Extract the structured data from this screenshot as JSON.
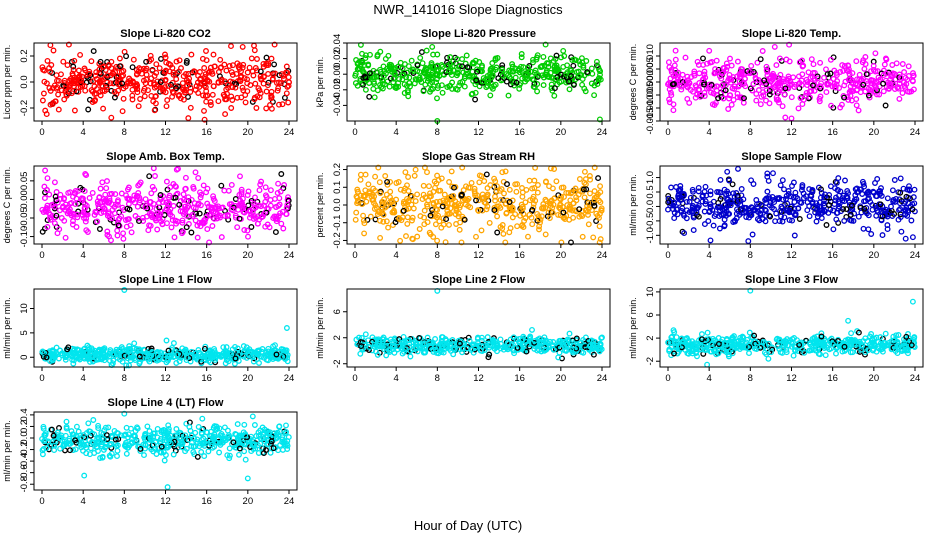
{
  "figure": {
    "title": "NWR_141016  Slope Diagnostics",
    "xlabel": "Hour of Day (UTC)"
  },
  "chart_data": [
    {
      "type": "scatter",
      "title": "Slope Li-820 CO2",
      "ylabel": "Licor ppm per min.",
      "color": "#ff0000",
      "xlim": [
        0,
        24
      ],
      "ylim": [
        -0.3,
        0.3
      ],
      "x_ticks": [
        0,
        4,
        8,
        12,
        16,
        20,
        24
      ],
      "y_ticks": [
        -0.2,
        0.0,
        0.2
      ],
      "y_tick_labels": [
        "-0.2",
        "0.0",
        "0.2"
      ],
      "center": 0.0,
      "spread": 0.1,
      "outliers": [
        {
          "x": 15.8,
          "y": -0.29
        },
        {
          "x": 20.6,
          "y": 0.28
        },
        {
          "x": 19.5,
          "y": 0.27
        }
      ]
    },
    {
      "type": "scatter",
      "title": "Slope Li-820 Pressure",
      "ylabel": "kPa per min.",
      "color": "#00cc00",
      "xlim": [
        0,
        24
      ],
      "ylim": [
        -0.06,
        0.04
      ],
      "x_ticks": [
        0,
        4,
        8,
        12,
        16,
        20,
        24
      ],
      "y_ticks": [
        -0.04,
        -0.02,
        0.0,
        0.02,
        0.04
      ],
      "y_tick_labels": [
        "-0.04",
        "-0.02",
        "0.00",
        "0.02",
        "0.04"
      ],
      "center": 0.0,
      "spread": 0.012,
      "outliers": [
        {
          "x": 8.0,
          "y": -0.06
        },
        {
          "x": 23.8,
          "y": -0.058
        },
        {
          "x": 7.5,
          "y": 0.035
        }
      ]
    },
    {
      "type": "scatter",
      "title": "Slope Li-820 Temp.",
      "ylabel": "degrees C per min.",
      "color": "#ff00ff",
      "xlim": [
        0,
        24
      ],
      "ylim": [
        -0.015,
        0.015
      ],
      "x_ticks": [
        0,
        4,
        8,
        12,
        16,
        20,
        24
      ],
      "y_ticks": [
        -0.015,
        -0.01,
        -0.005,
        0.0,
        0.005,
        0.01
      ],
      "y_tick_labels": [
        "-0.015",
        "-0.010",
        "-0.005",
        "0.000",
        "0.005",
        "0.010"
      ],
      "center": 0.0,
      "spread": 0.0045,
      "outliers": [
        {
          "x": 12.0,
          "y": -0.014
        },
        {
          "x": 4.0,
          "y": 0.012
        }
      ]
    },
    {
      "type": "scatter",
      "title": "Slope Amb. Box Temp.",
      "ylabel": "degrees C per min.",
      "color": "#ff00ff",
      "xlim": [
        0,
        24
      ],
      "ylim": [
        -0.12,
        0.09
      ],
      "x_ticks": [
        0,
        4,
        8,
        12,
        16,
        20,
        24
      ],
      "y_ticks": [
        -0.1,
        -0.05,
        0.0,
        0.05
      ],
      "y_tick_labels": [
        "-0.10",
        "-0.05",
        "0.00",
        "0.05"
      ],
      "center": -0.02,
      "spread": 0.035,
      "outliers": [
        {
          "x": 13.1,
          "y": 0.08
        },
        {
          "x": 6.7,
          "y": -0.11
        }
      ]
    },
    {
      "type": "scatter",
      "title": "Slope Gas Stream RH",
      "ylabel": "percent per min.",
      "color": "#ffa500",
      "xlim": [
        0,
        24
      ],
      "ylim": [
        -0.22,
        0.22
      ],
      "x_ticks": [
        0,
        4,
        8,
        12,
        16,
        20,
        24
      ],
      "y_ticks": [
        -0.2,
        -0.1,
        0.0,
        0.1,
        0.2
      ],
      "y_tick_labels": [
        "-0.2",
        "-0.1",
        "0.0",
        "0.1",
        "0.2"
      ],
      "center": 0.0,
      "spread": 0.09,
      "outliers": [
        {
          "x": 17.5,
          "y": 0.21
        },
        {
          "x": 8.8,
          "y": -0.21
        }
      ]
    },
    {
      "type": "scatter",
      "title": "Slope Sample Flow",
      "ylabel": "ml/min per min.",
      "color": "#0000cc",
      "xlim": [
        0,
        24
      ],
      "ylim": [
        -1.3,
        1.4
      ],
      "x_ticks": [
        0,
        4,
        8,
        12,
        16,
        20,
        24
      ],
      "y_ticks": [
        -1.0,
        -0.5,
        0.0,
        0.5,
        1.0
      ],
      "y_tick_labels": [
        "-1.0",
        "-0.5",
        "0.0",
        "0.5",
        "1.0"
      ],
      "center": 0.05,
      "spread": 0.4,
      "outliers": [
        {
          "x": 6.8,
          "y": 1.3
        },
        {
          "x": 7.8,
          "y": -1.2
        },
        {
          "x": 10.2,
          "y": 1.15
        }
      ]
    },
    {
      "type": "scatter",
      "title": "Slope Line 1 Flow",
      "ylabel": "ml/min per min.",
      "color": "#00e5ee",
      "xlim": [
        0,
        24
      ],
      "ylim": [
        -2,
        14
      ],
      "x_ticks": [
        0,
        4,
        8,
        12,
        16,
        20,
        24
      ],
      "y_ticks": [
        0,
        5,
        10
      ],
      "y_tick_labels": [
        "0",
        "5",
        "10"
      ],
      "center": 0.5,
      "spread": 0.8,
      "outliers": [
        {
          "x": 8.0,
          "y": 13.8
        },
        {
          "x": 23.8,
          "y": 6.0
        }
      ]
    },
    {
      "type": "scatter",
      "title": "Slope Line 2 Flow",
      "ylabel": "ml/min per min.",
      "color": "#00e5ee",
      "xlim": [
        0,
        24
      ],
      "ylim": [
        -2.5,
        9.5
      ],
      "x_ticks": [
        0,
        4,
        8,
        12,
        16,
        20,
        24
      ],
      "y_ticks": [
        -2,
        2,
        6
      ],
      "y_tick_labels": [
        "-2",
        "2",
        "6"
      ],
      "center": 0.8,
      "spread": 0.7,
      "outliers": [
        {
          "x": 8.0,
          "y": 9.2
        },
        {
          "x": 17.2,
          "y": 3.2
        }
      ]
    },
    {
      "type": "scatter",
      "title": "Slope Line 3 Flow",
      "ylabel": "ml/min per min.",
      "color": "#00e5ee",
      "xlim": [
        0,
        24
      ],
      "ylim": [
        -3,
        10.5
      ],
      "x_ticks": [
        0,
        4,
        8,
        12,
        16,
        20,
        24
      ],
      "y_ticks": [
        -2,
        2,
        6,
        10
      ],
      "y_tick_labels": [
        "-2",
        "2",
        "6",
        "10"
      ],
      "center": 0.8,
      "spread": 0.8,
      "outliers": [
        {
          "x": 8.0,
          "y": 10.2
        },
        {
          "x": 23.8,
          "y": 8.3
        },
        {
          "x": 17.5,
          "y": 5.0
        },
        {
          "x": 3.8,
          "y": -2.6
        }
      ]
    },
    {
      "type": "scatter",
      "title": "Slope Line 4 (LT) Flow",
      "ylabel": "ml/min per min.",
      "color": "#00e5ee",
      "xlim": [
        0,
        24
      ],
      "ylim": [
        -0.9,
        0.45
      ],
      "x_ticks": [
        0,
        4,
        8,
        12,
        16,
        20,
        24
      ],
      "y_ticks": [
        -0.8,
        -0.6,
        -0.4,
        -0.2,
        0.0,
        0.2,
        0.4
      ],
      "y_tick_labels": [
        "-0.8",
        "-0.6",
        "-0.4",
        "-0.2",
        "0.0",
        "0.2",
        "0.4"
      ],
      "center": -0.05,
      "spread": 0.13,
      "outliers": [
        {
          "x": 12.2,
          "y": -0.85
        },
        {
          "x": 4.1,
          "y": -0.65
        },
        {
          "x": 20.0,
          "y": -0.7
        },
        {
          "x": 8.0,
          "y": 0.42
        }
      ]
    }
  ]
}
